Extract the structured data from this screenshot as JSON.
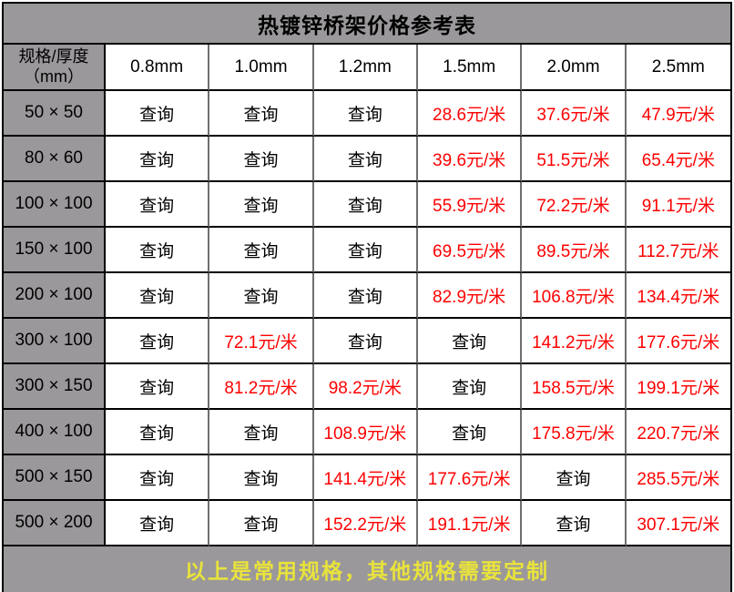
{
  "title": "热镀锌桥架价格参考表",
  "colors": {
    "header_gray": "#9b989b",
    "price_red": "#fe0000",
    "footer_yellow": "#e9e33b",
    "border_black": "#000000",
    "border_gray": "#6f6f6f"
  },
  "chart_data": {
    "type": "table",
    "title": "热镀锌桥架价格参考表",
    "corner_line1": "规格/厚度",
    "corner_line2": "（mm）",
    "query_label": "查询",
    "price_unit": "元/米",
    "columns": [
      "0.8mm",
      "1.0mm",
      "1.2mm",
      "1.5mm",
      "2.0mm",
      "2.5mm"
    ],
    "rows": [
      {
        "spec": "50 × 50",
        "values": [
          "查询",
          "查询",
          "查询",
          "28.6元/米",
          "37.6元/米",
          "47.9元/米"
        ]
      },
      {
        "spec": "80 × 60",
        "values": [
          "查询",
          "查询",
          "查询",
          "39.6元/米",
          "51.5元/米",
          "65.4元/米"
        ]
      },
      {
        "spec": "100 × 100",
        "values": [
          "查询",
          "查询",
          "查询",
          "55.9元/米",
          "72.2元/米",
          "91.1元/米"
        ]
      },
      {
        "spec": "150 × 100",
        "values": [
          "查询",
          "查询",
          "查询",
          "69.5元/米",
          "89.5元/米",
          "112.7元/米"
        ]
      },
      {
        "spec": "200 × 100",
        "values": [
          "查询",
          "查询",
          "查询",
          "82.9元/米",
          "106.8元/米",
          "134.4元/米"
        ]
      },
      {
        "spec": "300 × 100",
        "values": [
          "查询",
          "72.1元/米",
          "查询",
          "查询",
          "141.2元/米",
          "177.6元/米"
        ]
      },
      {
        "spec": "300 × 150",
        "values": [
          "查询",
          "81.2元/米",
          "98.2元/米",
          "查询",
          "158.5元/米",
          "199.1元/米"
        ]
      },
      {
        "spec": "400 × 100",
        "values": [
          "查询",
          "查询",
          "108.9元/米",
          "查询",
          "175.8元/米",
          "220.7元/米"
        ]
      },
      {
        "spec": "500 × 150",
        "values": [
          "查询",
          "查询",
          "141.4元/米",
          "177.6元/米",
          "查询",
          "285.5元/米"
        ]
      },
      {
        "spec": "500 × 200",
        "values": [
          "查询",
          "查询",
          "152.2元/米",
          "191.1元/米",
          "查询",
          "307.1元/米"
        ]
      }
    ],
    "footer": "以上是常用规格，其他规格需要定制"
  }
}
